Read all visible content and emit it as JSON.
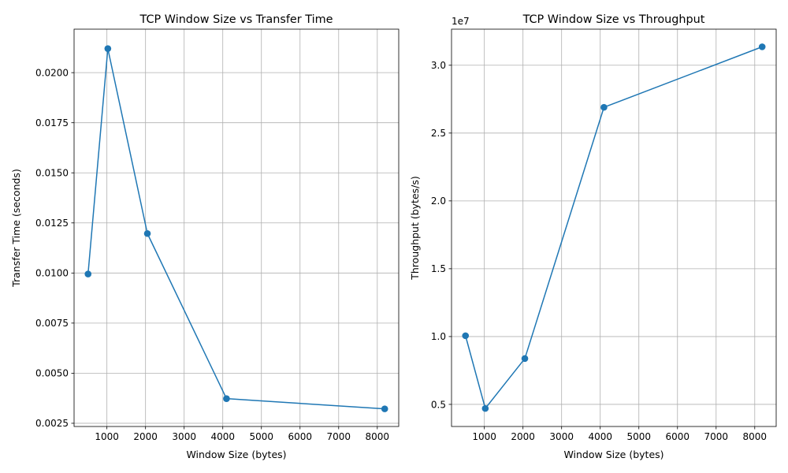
{
  "colors": {
    "series": "#1f77b4",
    "grid": "#b0b0b0"
  },
  "chart_data": [
    {
      "type": "line",
      "title": "TCP Window Size vs Transfer Time",
      "xlabel": "Window Size (bytes)",
      "ylabel": "Transfer Time (seconds)",
      "x": [
        512,
        1024,
        2048,
        4096,
        8192
      ],
      "values": [
        0.00995,
        0.0212,
        0.01197,
        0.00373,
        0.00322
      ],
      "xlim": [
        150,
        8555
      ],
      "ylim": [
        0.00234,
        0.02217
      ],
      "xticks": [
        1000,
        2000,
        3000,
        4000,
        5000,
        6000,
        7000,
        8000
      ],
      "xtick_labels": [
        "1000",
        "2000",
        "3000",
        "4000",
        "5000",
        "6000",
        "7000",
        "8000"
      ],
      "yticks": [
        0.0025,
        0.005,
        0.0075,
        0.01,
        0.0125,
        0.015,
        0.0175,
        0.02
      ],
      "ytick_labels": [
        "0.0025",
        "0.0050",
        "0.0075",
        "0.0100",
        "0.0125",
        "0.0150",
        "0.0175",
        "0.0200"
      ],
      "offset_text": "",
      "grid": true,
      "marker": "circle"
    },
    {
      "type": "line",
      "title": "TCP Window Size vs Throughput",
      "xlabel": "Window Size (bytes)",
      "ylabel": "Throughput (bytes/s)",
      "x": [
        512,
        1024,
        2048,
        4096,
        8192
      ],
      "values": [
        10060000,
        4700000,
        8380000,
        26900000,
        31360000
      ],
      "xlim": [
        150,
        8555
      ],
      "ylim": [
        3370000,
        32660000
      ],
      "xticks": [
        1000,
        2000,
        3000,
        4000,
        5000,
        6000,
        7000,
        8000
      ],
      "xtick_labels": [
        "1000",
        "2000",
        "3000",
        "4000",
        "5000",
        "6000",
        "7000",
        "8000"
      ],
      "yticks": [
        5000000,
        10000000,
        15000000,
        20000000,
        25000000,
        30000000
      ],
      "ytick_labels": [
        "0.5",
        "1.0",
        "1.5",
        "2.0",
        "2.5",
        "3.0"
      ],
      "offset_text": "1e7",
      "grid": true,
      "marker": "circle"
    }
  ]
}
